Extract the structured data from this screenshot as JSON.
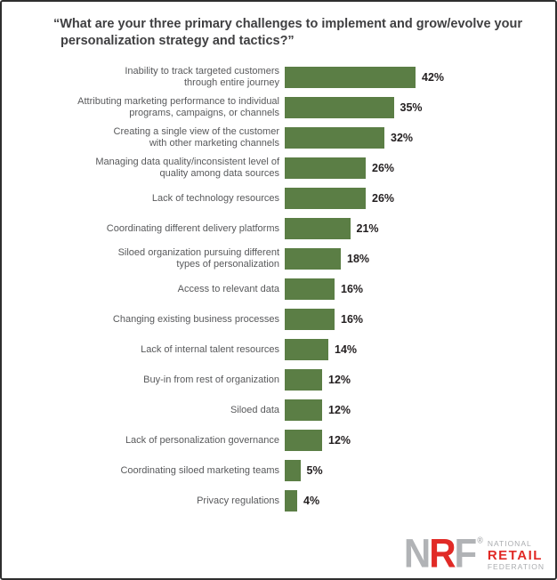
{
  "title": {
    "lines": [
      "“What are your three primary challenges to implement and grow/evolve your",
      "personalization strategy and tactics?”"
    ]
  },
  "chart_data": {
    "type": "bar",
    "orientation": "horizontal",
    "title": "“What are your three primary challenges to implement and grow/evolve your personalization strategy and tactics?”",
    "categories": [
      "Inability to track targeted customers\nthrough entire journey",
      "Attributing marketing performance to individual\nprograms, campaigns, or channels",
      "Creating a single view of the customer\nwith other marketing channels",
      "Managing data quality/inconsistent level of\nquality among data sources",
      "Lack of technology resources",
      "Coordinating different delivery platforms",
      "Siloed organization pursuing different\ntypes of personalization",
      "Access to relevant data",
      "Changing existing business processes",
      "Lack of internal talent resources",
      "Buy-in from rest of organization",
      "Siloed data",
      "Lack of personalization governance",
      "Coordinating siloed marketing teams",
      "Privacy regulations"
    ],
    "values": [
      42,
      35,
      32,
      26,
      26,
      21,
      18,
      16,
      16,
      14,
      12,
      12,
      12,
      5,
      4
    ],
    "value_suffix": "%",
    "xlabel": "",
    "ylabel": "",
    "xlim": [
      0,
      45
    ],
    "grid": false,
    "legend": "none",
    "bar_color": "#5b7e45",
    "value_label_color": "#231f20",
    "category_label_color": "#58595b"
  },
  "logo": {
    "letters": [
      "N",
      "R",
      "F"
    ],
    "registered": "®",
    "org_lines": [
      "NATIONAL",
      "RETAIL",
      "FEDERATION"
    ],
    "colors": {
      "gray": "#b1b3b6",
      "red": "#e12a26"
    }
  }
}
